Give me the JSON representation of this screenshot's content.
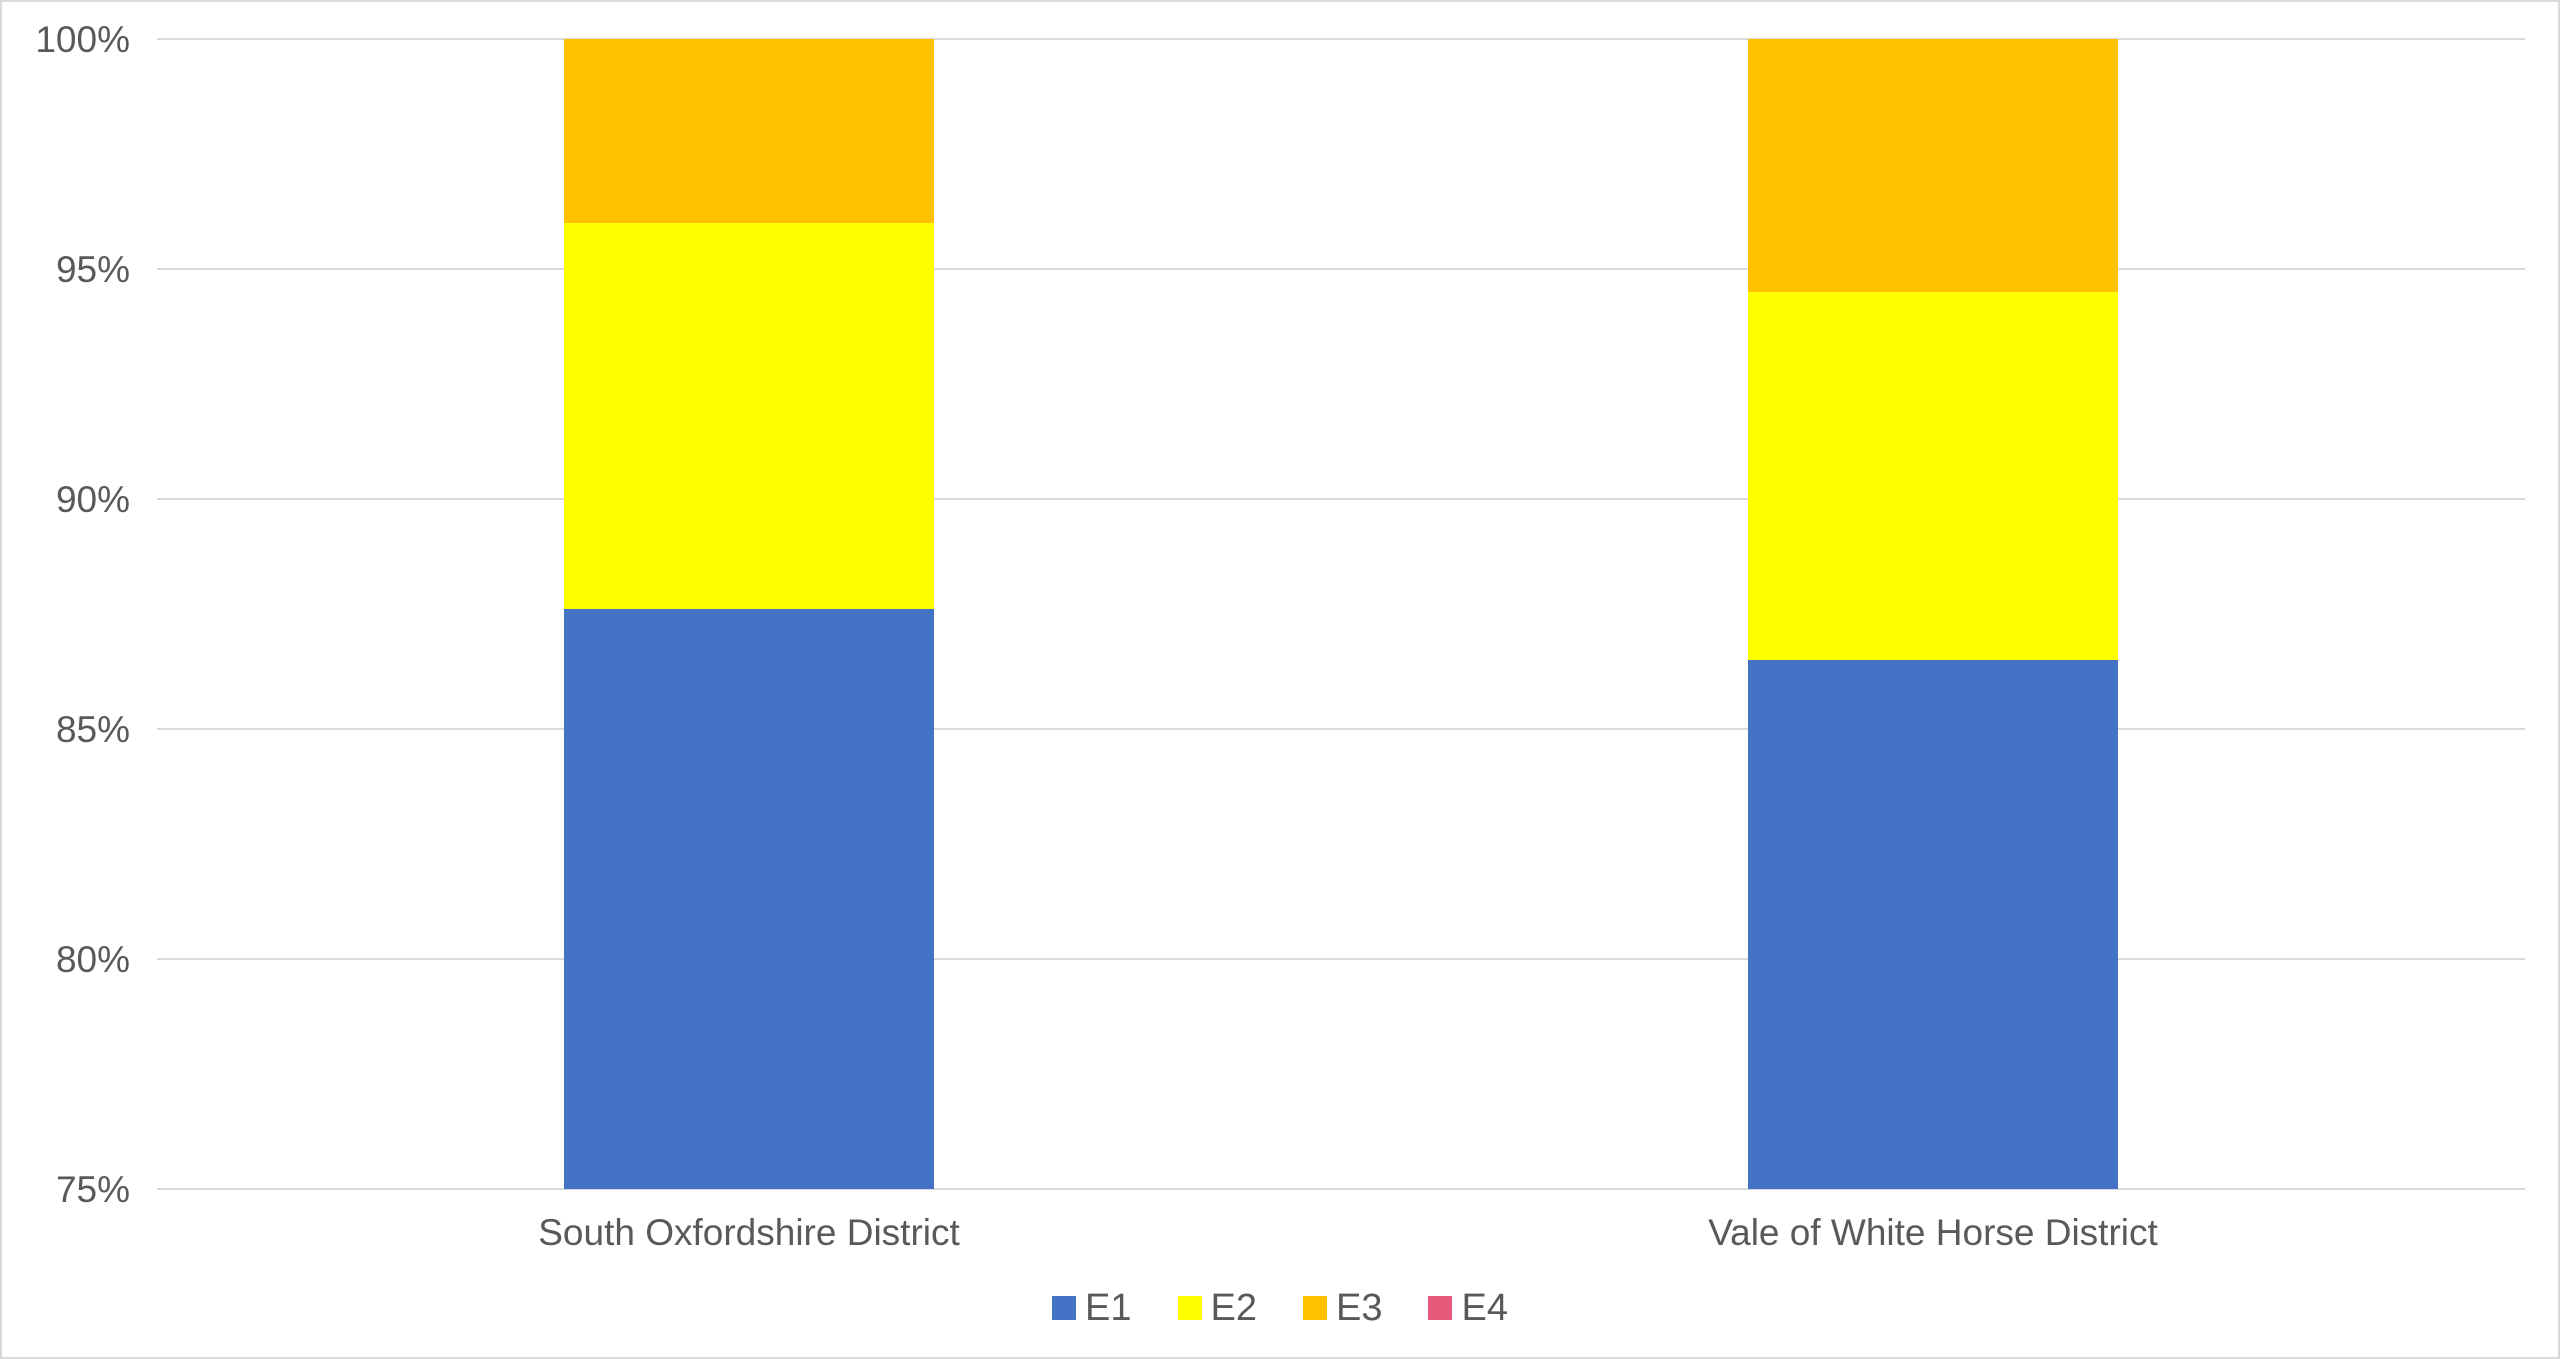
{
  "chart_data": {
    "type": "bar",
    "subtype": "stacked-100",
    "title": "",
    "xlabel": "",
    "ylabel": "",
    "categories": [
      "South Oxfordshire District",
      "Vale of White Horse District"
    ],
    "series": [
      {
        "name": "E1",
        "color": "#4472C4",
        "values": [
          87.6,
          86.5
        ]
      },
      {
        "name": "E2",
        "color": "#FFFF00",
        "values": [
          8.4,
          8.0
        ]
      },
      {
        "name": "E3",
        "color": "#FFC000",
        "values": [
          4.0,
          5.5
        ]
      },
      {
        "name": "E4",
        "color": "#E8587B",
        "values": [
          0,
          0
        ]
      }
    ],
    "ylim": [
      75,
      100
    ],
    "yticks": [
      {
        "value": 100,
        "label": "100%"
      },
      {
        "value": 95,
        "label": "95%"
      },
      {
        "value": 90,
        "label": "90%"
      },
      {
        "value": 85,
        "label": "85%"
      },
      {
        "value": 80,
        "label": "80%"
      },
      {
        "value": 75,
        "label": "75%"
      }
    ],
    "grid": true,
    "gridline_color": "#D9D9D9",
    "text_color": "#595959",
    "legend_position": "bottom",
    "legend_entries": [
      "E1",
      "E2",
      "E3",
      "E4"
    ]
  }
}
